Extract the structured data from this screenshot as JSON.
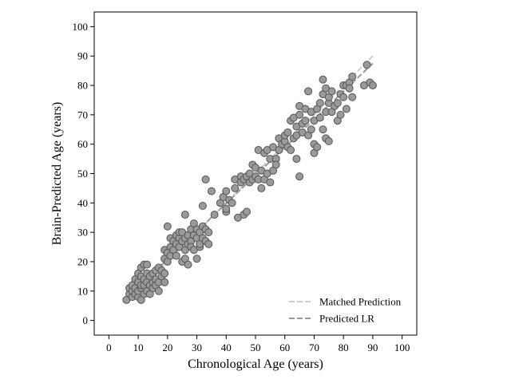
{
  "chart_data": {
    "type": "scatter",
    "title": "",
    "xlabel": "Chronological Age (years)",
    "ylabel": "Brain-Predicted Age (years)",
    "xlim": [
      -5,
      105
    ],
    "ylim": [
      -5,
      105
    ],
    "xticks": [
      "0",
      "10",
      "20",
      "30",
      "40",
      "50",
      "60",
      "70",
      "80",
      "90",
      "100"
    ],
    "yticks": [
      "0",
      "10",
      "20",
      "30",
      "40",
      "50",
      "60",
      "70",
      "80",
      "90",
      "100"
    ],
    "grid": false,
    "legend_position": "bottom-right",
    "colors": {
      "points_fill": "#9a9a9a",
      "points_edge": "#555555",
      "matched_line": "#cccccc",
      "lr_line": "#999999"
    },
    "lines": [
      {
        "name": "Matched Prediction",
        "x": [
          6,
          90
        ],
        "y": [
          6,
          90
        ],
        "style": "dashed"
      },
      {
        "name": "Predicted LR",
        "x": [
          6,
          90
        ],
        "y": [
          7.5,
          87.5
        ],
        "style": "dashed"
      }
    ],
    "points": [
      [
        6,
        7
      ],
      [
        7,
        9
      ],
      [
        7,
        11
      ],
      [
        8,
        8
      ],
      [
        8,
        10
      ],
      [
        8,
        12
      ],
      [
        9,
        9
      ],
      [
        9,
        11
      ],
      [
        9,
        14
      ],
      [
        10,
        8
      ],
      [
        10,
        10
      ],
      [
        10,
        13
      ],
      [
        10,
        16
      ],
      [
        11,
        7
      ],
      [
        11,
        11
      ],
      [
        11,
        12
      ],
      [
        11,
        15
      ],
      [
        11,
        18
      ],
      [
        12,
        9
      ],
      [
        12,
        12
      ],
      [
        12,
        14
      ],
      [
        12,
        19
      ],
      [
        13,
        10
      ],
      [
        13,
        13
      ],
      [
        13,
        16
      ],
      [
        13,
        19
      ],
      [
        14,
        9
      ],
      [
        14,
        12
      ],
      [
        14,
        15
      ],
      [
        15,
        11
      ],
      [
        15,
        13
      ],
      [
        15,
        16
      ],
      [
        16,
        12
      ],
      [
        16,
        14
      ],
      [
        16,
        17
      ],
      [
        17,
        10
      ],
      [
        17,
        13
      ],
      [
        17,
        18
      ],
      [
        18,
        15
      ],
      [
        18,
        17
      ],
      [
        19,
        13
      ],
      [
        19,
        16
      ],
      [
        19,
        21
      ],
      [
        19,
        24
      ],
      [
        20,
        20
      ],
      [
        20,
        23
      ],
      [
        20,
        32
      ],
      [
        21,
        22
      ],
      [
        21,
        25
      ],
      [
        21,
        28
      ],
      [
        22,
        24
      ],
      [
        22,
        27
      ],
      [
        23,
        22
      ],
      [
        23,
        26
      ],
      [
        23,
        29
      ],
      [
        24,
        25
      ],
      [
        24,
        28
      ],
      [
        24,
        30
      ],
      [
        25,
        20
      ],
      [
        25,
        27
      ],
      [
        25,
        30
      ],
      [
        26,
        36
      ],
      [
        26,
        24
      ],
      [
        26,
        28
      ],
      [
        26,
        21
      ],
      [
        27,
        19
      ],
      [
        27,
        26
      ],
      [
        27,
        29
      ],
      [
        28,
        27
      ],
      [
        28,
        31
      ],
      [
        28,
        25
      ],
      [
        29,
        24
      ],
      [
        29,
        29
      ],
      [
        29,
        33
      ],
      [
        30,
        21
      ],
      [
        30,
        28
      ],
      [
        30,
        31
      ],
      [
        31,
        25
      ],
      [
        31,
        30
      ],
      [
        31,
        26
      ],
      [
        32,
        28
      ],
      [
        32,
        32
      ],
      [
        32,
        39
      ],
      [
        33,
        48
      ],
      [
        33,
        31
      ],
      [
        33,
        27
      ],
      [
        34,
        30
      ],
      [
        34,
        26
      ],
      [
        35,
        44
      ],
      [
        36,
        36
      ],
      [
        38,
        40
      ],
      [
        39,
        42
      ],
      [
        40,
        37
      ],
      [
        40,
        44
      ],
      [
        40,
        38
      ],
      [
        41,
        41
      ],
      [
        42,
        40
      ],
      [
        43,
        48
      ],
      [
        43,
        45
      ],
      [
        44,
        35
      ],
      [
        45,
        49
      ],
      [
        45,
        47
      ],
      [
        46,
        36
      ],
      [
        46,
        48
      ],
      [
        47,
        37
      ],
      [
        47,
        49
      ],
      [
        48,
        47
      ],
      [
        48,
        50
      ],
      [
        49,
        48
      ],
      [
        49,
        53
      ],
      [
        50,
        52
      ],
      [
        50,
        49
      ],
      [
        51,
        58
      ],
      [
        51,
        48
      ],
      [
        52,
        51
      ],
      [
        52,
        45
      ],
      [
        53,
        48
      ],
      [
        53,
        57
      ],
      [
        54,
        50
      ],
      [
        54,
        58
      ],
      [
        55,
        47
      ],
      [
        55,
        55
      ],
      [
        56,
        59
      ],
      [
        56,
        51
      ],
      [
        57,
        55
      ],
      [
        57,
        53
      ],
      [
        58,
        58
      ],
      [
        58,
        62
      ],
      [
        59,
        60
      ],
      [
        60,
        61
      ],
      [
        60,
        63
      ],
      [
        61,
        59
      ],
      [
        61,
        64
      ],
      [
        62,
        58
      ],
      [
        62,
        68
      ],
      [
        63,
        62
      ],
      [
        63,
        69
      ],
      [
        64,
        63
      ],
      [
        64,
        55
      ],
      [
        64,
        66
      ],
      [
        65,
        49
      ],
      [
        65,
        73
      ],
      [
        65,
        70
      ],
      [
        66,
        64
      ],
      [
        66,
        67
      ],
      [
        67,
        68
      ],
      [
        67,
        72
      ],
      [
        68,
        78
      ],
      [
        68,
        63
      ],
      [
        69,
        65
      ],
      [
        69,
        71
      ],
      [
        70,
        60
      ],
      [
        70,
        57
      ],
      [
        70,
        68
      ],
      [
        71,
        59
      ],
      [
        71,
        72
      ],
      [
        72,
        74
      ],
      [
        72,
        69
      ],
      [
        73,
        65
      ],
      [
        73,
        77
      ],
      [
        73,
        82
      ],
      [
        74,
        79
      ],
      [
        74,
        71
      ],
      [
        74,
        62
      ],
      [
        75,
        61
      ],
      [
        75,
        74
      ],
      [
        75,
        76
      ],
      [
        76,
        71
      ],
      [
        76,
        78
      ],
      [
        77,
        73
      ],
      [
        78,
        68
      ],
      [
        78,
        74
      ],
      [
        79,
        77
      ],
      [
        79,
        70
      ],
      [
        80,
        80
      ],
      [
        80,
        76
      ],
      [
        81,
        80
      ],
      [
        81,
        72
      ],
      [
        82,
        81
      ],
      [
        82,
        79
      ],
      [
        83,
        76
      ],
      [
        83,
        83
      ],
      [
        87,
        80
      ],
      [
        88,
        87
      ],
      [
        89,
        81
      ],
      [
        90,
        80
      ]
    ]
  }
}
